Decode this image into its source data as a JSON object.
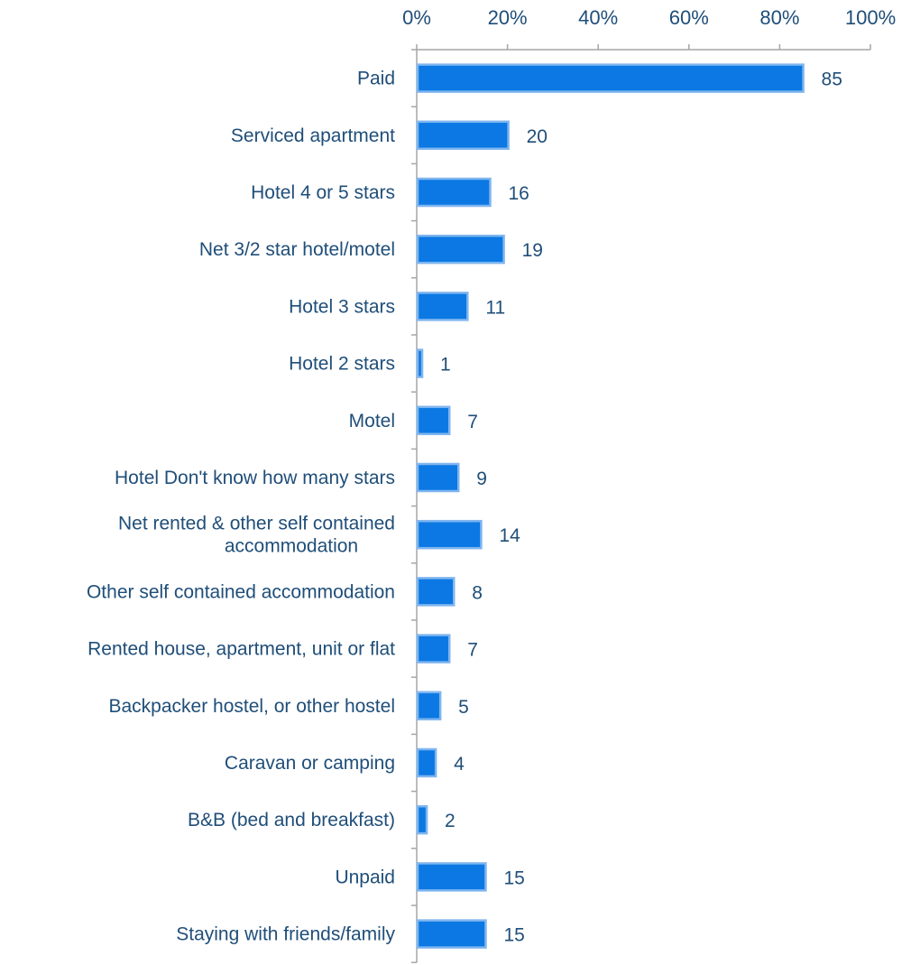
{
  "chart_data": {
    "type": "bar",
    "orientation": "horizontal",
    "categories": [
      "Paid",
      "Serviced apartment",
      "Hotel 4 or 5 stars",
      "Net 3/2 star hotel/motel",
      "Hotel 3 stars",
      "Hotel 2 stars",
      "Motel",
      "Hotel Don't know how many stars",
      "Net rented & other self contained accommodation",
      "Other self contained accommodation",
      "Rented house, apartment, unit or flat",
      "Backpacker hostel, or other hostel",
      "Caravan or camping",
      "B&B (bed and breakfast)",
      "Unpaid",
      "Staying with friends/family"
    ],
    "category_lines": [
      [
        "Paid"
      ],
      [
        "Serviced apartment"
      ],
      [
        "Hotel 4 or 5 stars"
      ],
      [
        "Net 3/2 star hotel/motel"
      ],
      [
        "Hotel 3 stars"
      ],
      [
        "Hotel 2 stars"
      ],
      [
        "Motel"
      ],
      [
        "Hotel Don't know how many stars"
      ],
      [
        "Net rented & other self contained",
        "accommodation"
      ],
      [
        "Other self contained accommodation"
      ],
      [
        "Rented house, apartment, unit or flat"
      ],
      [
        "Backpacker hostel, or other hostel"
      ],
      [
        "Caravan or camping"
      ],
      [
        "B&B (bed and breakfast)"
      ],
      [
        "Unpaid"
      ],
      [
        "Staying with friends/family"
      ]
    ],
    "values": [
      85,
      20,
      16,
      19,
      11,
      1,
      7,
      9,
      14,
      8,
      7,
      5,
      4,
      2,
      15,
      15
    ],
    "data_labels": [
      "85",
      "20",
      "16",
      "19",
      "11",
      "1",
      "7",
      "9",
      "14",
      "8",
      "7",
      "5",
      "4",
      "2",
      "15",
      "15"
    ],
    "xlim": [
      0,
      100
    ],
    "x_ticks": [
      0,
      20,
      40,
      60,
      80,
      100
    ],
    "x_tick_labels": [
      "0%",
      "20%",
      "40%",
      "60%",
      "80%",
      "100%"
    ],
    "x_axis_position": "top",
    "title": "",
    "xlabel": "",
    "ylabel": "",
    "grid": false,
    "legend": "none",
    "colors": {
      "bar_fill": "#0b78e3",
      "bar_edge": "#7fb5ef",
      "text": "#1f4e79",
      "axis": "#a6a6a6"
    }
  }
}
